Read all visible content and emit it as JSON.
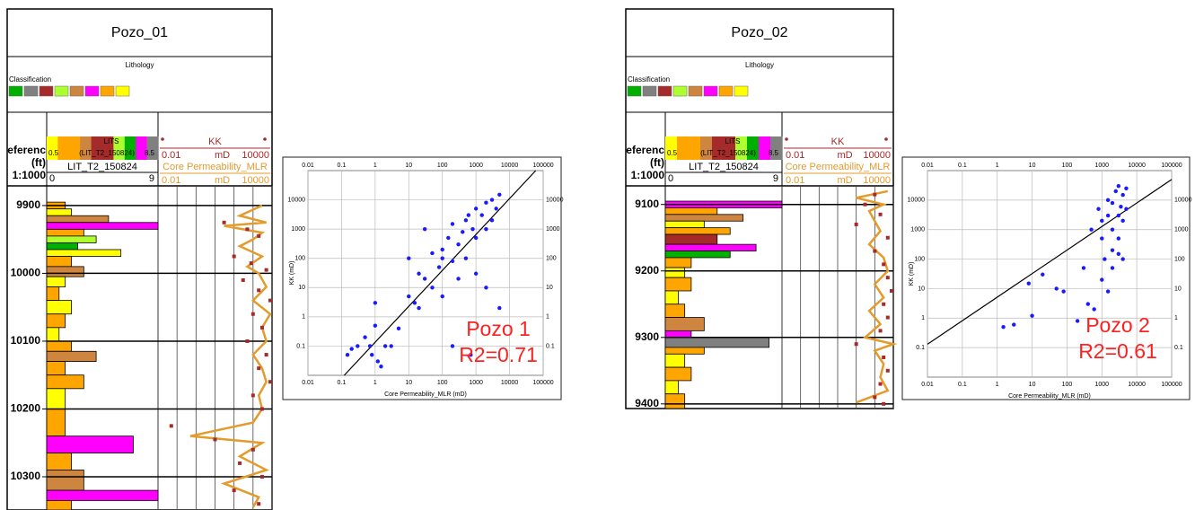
{
  "chart_data": [
    {
      "type": "well_log",
      "title": "Pozo_01",
      "lithology_title": "Lithology",
      "classification_label": "Classification",
      "classification_colors": [
        "#00b000",
        "#808080",
        "#a52a2a",
        "#adff2f",
        "#cd853f",
        "#ff00ff",
        "#ffa500",
        "#ffff00"
      ],
      "depth_header": [
        "eferenc",
        "(ft)",
        "1:1000"
      ],
      "ylim": [
        9871,
        10349
      ],
      "yticks": [
        9900,
        10000,
        10100,
        10200,
        10300
      ],
      "track1": {
        "strip_label": "LITS",
        "strip_min": 0.5,
        "strip_name": "(LIT_T2_150824)",
        "strip_max": 8.5,
        "curve_name": "LIT_T2_150824",
        "xlim": [
          0,
          9
        ]
      },
      "track2": {
        "curves": [
          {
            "name": "KK",
            "color": "#a52a2a",
            "unit": "mD",
            "xlim": [
              0.01,
              10000
            ]
          },
          {
            "name": "Core Permeability_MLR",
            "color": "#e39b2c",
            "unit": "mD",
            "xlim": [
              0.01,
              10000
            ]
          }
        ],
        "xticks": [
          0.01,
          0.1,
          1,
          10,
          100,
          1000,
          10000
        ]
      },
      "intervals": {
        "top": [
          9895,
          9905,
          9915,
          9925,
          9935,
          9945,
          9955,
          9965,
          9975,
          9990,
          10005,
          10020,
          10040,
          10060,
          10080,
          10100,
          10115,
          10130,
          10150,
          10170,
          10200,
          10240,
          10265,
          10290,
          10320,
          10335
        ],
        "base": [
          9905,
          9915,
          9925,
          9935,
          9945,
          9955,
          9965,
          9975,
          9990,
          10005,
          10020,
          10040,
          10060,
          10080,
          10100,
          10115,
          10130,
          10150,
          10170,
          10200,
          10240,
          10265,
          10290,
          10320,
          10335,
          10349
        ],
        "class": [
          6,
          7,
          4,
          5,
          6,
          3,
          0,
          7,
          6,
          4,
          7,
          6,
          7,
          6,
          7,
          6,
          4,
          6,
          6,
          7,
          6,
          5,
          6,
          4,
          5,
          6
        ],
        "values": [
          1.5,
          2,
          5,
          9,
          3,
          4,
          2.5,
          6,
          2,
          3,
          1.5,
          1,
          2,
          1.5,
          1,
          2,
          4,
          1.5,
          3,
          1.5,
          1.5,
          7,
          2,
          3,
          9,
          2
        ]
      },
      "kk": {
        "depth": [
          9925,
          9935,
          9945,
          9975,
          9985,
          9995,
          10010,
          10025,
          10040,
          10060,
          10080,
          10100,
          10120,
          10140,
          10160,
          10180,
          10200,
          10225,
          10245,
          10260,
          10280,
          10300,
          10320,
          10340
        ],
        "values": [
          30,
          500,
          2000,
          100,
          800,
          5000,
          300,
          2000,
          8000,
          1000,
          3000,
          500,
          5000,
          2000,
          8000,
          1000,
          3000,
          0.05,
          10,
          1000,
          200,
          3000,
          100,
          2000
        ]
      },
      "core": {
        "depth": [
          9900,
          9915,
          9925,
          9930,
          9940,
          9950,
          9960,
          9975,
          9990,
          10000,
          10020,
          10040,
          10060,
          10080,
          10100,
          10120,
          10140,
          10160,
          10180,
          10200,
          10220,
          10240,
          10250,
          10270,
          10290,
          10310,
          10330,
          10345
        ],
        "values": [
          3000,
          200,
          5000,
          30,
          3000,
          1000,
          200,
          3000,
          500,
          2000,
          5000,
          1000,
          8000,
          3000,
          5000,
          1000,
          3000,
          5000,
          2000,
          3000,
          1000,
          0.5,
          3000,
          200,
          5000,
          30,
          2000,
          1000
        ]
      }
    },
    {
      "type": "scatter",
      "x_label": "Core Permeability_MLR (mD)",
      "y_label": "KK (mD)",
      "log": true,
      "color": "#1a1aff",
      "xlim": [
        0.01,
        100000
      ],
      "ylim": [
        0.01,
        100000
      ],
      "xticks": [
        0.01,
        0.1,
        1,
        10,
        100,
        1000,
        10000,
        100000
      ],
      "yticks": [
        0.1,
        1,
        10,
        100,
        1000,
        10000
      ],
      "x": [
        0.15,
        0.2,
        0.3,
        0.5,
        0.7,
        0.8,
        1,
        1,
        1.2,
        1.5,
        2,
        3,
        5,
        10,
        15,
        20,
        20,
        30,
        50,
        50,
        80,
        100,
        100,
        150,
        200,
        200,
        300,
        300,
        400,
        500,
        500,
        600,
        800,
        1000,
        1000,
        1500,
        2000,
        2000,
        3000,
        3000,
        4000,
        5000,
        10,
        30,
        100,
        1000,
        5000,
        200,
        700,
        2000
      ],
      "y": [
        0.05,
        0.08,
        0.1,
        0.2,
        0.1,
        0.05,
        3,
        0.5,
        0.03,
        0.02,
        0.1,
        0.1,
        0.4,
        5,
        3,
        30,
        2,
        1000,
        150,
        10,
        50,
        100,
        200,
        500,
        80,
        1500,
        300,
        20,
        800,
        2000,
        100,
        3000,
        1000,
        5000,
        500,
        3000,
        8000,
        1000,
        10000,
        2000,
        5000,
        15000,
        100,
        20,
        5,
        30,
        2,
        0.1,
        0.05,
        10
      ],
      "fit_line": {
        "x": [
          0.12,
          60000
        ],
        "y": [
          0.01,
          100000
        ]
      },
      "annotation": [
        "Pozo 1",
        "R2=0.71"
      ]
    },
    {
      "type": "well_log",
      "title": "Pozo_02",
      "lithology_title": "Lithology",
      "classification_label": "Classification",
      "classification_colors": [
        "#00b000",
        "#808080",
        "#a52a2a",
        "#adff2f",
        "#cd853f",
        "#ff00ff",
        "#ffa500",
        "#ffff00"
      ],
      "depth_header": [
        "eferenc",
        "(ft)",
        "1:1000"
      ],
      "ylim": [
        9072,
        9407
      ],
      "yticks": [
        9100,
        9200,
        9300,
        9400
      ],
      "track1": {
        "strip_label": "LITS",
        "strip_min": 0.5,
        "strip_name": "(LIT_T2_150824)",
        "strip_max": 8.5,
        "curve_name": "LIT_T2_150824",
        "xlim": [
          0,
          9
        ]
      },
      "track2": {
        "curves": [
          {
            "name": "KK",
            "color": "#a52a2a",
            "unit": "mD",
            "xlim": [
              0.01,
              10000
            ]
          },
          {
            "name": "Core Permeability_MLR",
            "color": "#e39b2c",
            "unit": "mD",
            "xlim": [
              0.01,
              10000
            ]
          }
        ],
        "xticks": [
          0.01,
          0.1,
          1,
          10,
          100,
          1000,
          10000
        ]
      },
      "intervals": {
        "top": [
          9095,
          9105,
          9115,
          9125,
          9135,
          9145,
          9160,
          9170,
          9180,
          9195,
          9210,
          9230,
          9250,
          9270,
          9290,
          9300,
          9315,
          9325,
          9345,
          9365,
          9385
        ],
        "base": [
          9105,
          9115,
          9125,
          9135,
          9145,
          9160,
          9170,
          9180,
          9195,
          9210,
          9230,
          9250,
          9270,
          9290,
          9300,
          9315,
          9325,
          9345,
          9365,
          9385,
          9407
        ],
        "class": [
          5,
          6,
          4,
          7,
          6,
          2,
          5,
          0,
          6,
          7,
          6,
          7,
          6,
          4,
          5,
          1,
          6,
          7,
          6,
          7,
          6
        ],
        "values": [
          9,
          4,
          6,
          3,
          5,
          4,
          7,
          5,
          2,
          1.5,
          2,
          1,
          1.5,
          3,
          2,
          8,
          3,
          1.5,
          2,
          1,
          1.5
        ]
      },
      "kk": {
        "depth": [
          9085,
          9100,
          9115,
          9130,
          9150,
          9170,
          9190,
          9210,
          9230,
          9250,
          9270,
          9290,
          9310,
          9330,
          9350,
          9370,
          9390,
          9400
        ],
        "values": [
          1000,
          300,
          2000,
          100,
          5000,
          1000,
          3000,
          5000,
          8000,
          3000,
          5000,
          2000,
          100,
          3000,
          5000,
          2000,
          1000,
          3000
        ]
      },
      "core": {
        "depth": [
          9080,
          9090,
          9100,
          9110,
          9125,
          9140,
          9160,
          9180,
          9200,
          9220,
          9240,
          9260,
          9280,
          9300,
          9310,
          9320,
          9340,
          9360,
          9380,
          9398
        ],
        "values": [
          5000,
          100,
          3000,
          500,
          1000,
          2000,
          500,
          3000,
          5000,
          1000,
          3000,
          500,
          2000,
          300,
          10000,
          1000,
          3000,
          2000,
          5000,
          100
        ]
      }
    },
    {
      "type": "scatter",
      "x_label": "Core Permeability_MLR (mD)",
      "y_label": "KK (mD)",
      "log": true,
      "color": "#1a1aff",
      "xlim": [
        0.01,
        100000
      ],
      "ylim": [
        0.01,
        100000
      ],
      "xticks": [
        0.01,
        0.1,
        1,
        10,
        100,
        1000,
        10000,
        100000
      ],
      "yticks": [
        0.1,
        1,
        10,
        100,
        1000,
        10000
      ],
      "x": [
        1.5,
        3,
        8,
        10,
        20,
        50,
        80,
        200,
        300,
        500,
        800,
        1000,
        1000,
        1200,
        1500,
        1500,
        2000,
        2000,
        2000,
        2500,
        3000,
        3000,
        3000,
        3500,
        4000,
        4000,
        4000,
        5000,
        5000,
        400,
        600,
        1000,
        2000,
        3000,
        1500
      ],
      "y": [
        0.5,
        0.6,
        15,
        1.2,
        30,
        10,
        8,
        0.8,
        50,
        1000,
        5000,
        2000,
        500,
        100,
        3000,
        10000,
        1000,
        8000,
        200,
        20000,
        3000,
        500,
        30000,
        6000,
        2000,
        15000,
        100,
        5000,
        25000,
        3,
        2,
        20,
        50,
        150,
        8
      ],
      "fit_line": {
        "x": [
          0.01,
          100000
        ],
        "y": [
          0.13,
          50000
        ]
      },
      "annotation": [
        "Pozo 2",
        "R2=0.61"
      ]
    }
  ]
}
